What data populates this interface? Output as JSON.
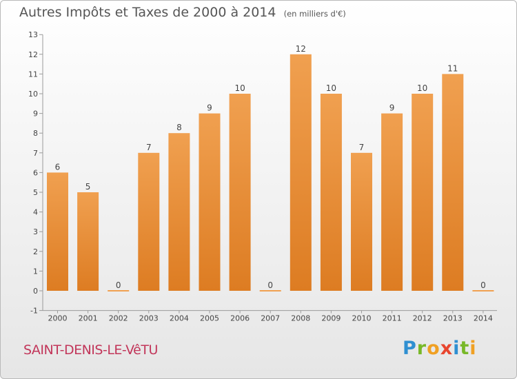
{
  "header": {
    "title": "Autres Impôts et Taxes de 2000 à 2014",
    "unit": "(en milliers d'€)"
  },
  "footer": {
    "commune": "SAINT-DENIS-LE-VêTU",
    "brand_letters": [
      "P",
      "r",
      "o",
      "x",
      "i",
      "t",
      "i"
    ],
    "brand_colors": [
      "#2f8fd1",
      "#78b828",
      "#f0a023",
      "#e8452e",
      "#2f8fd1",
      "#78b828",
      "#f0a023"
    ]
  },
  "chart_data": {
    "type": "bar",
    "categories": [
      "2000",
      "2001",
      "2002",
      "2003",
      "2004",
      "2005",
      "2006",
      "2007",
      "2008",
      "2009",
      "2010",
      "2011",
      "2012",
      "2013",
      "2014"
    ],
    "values": [
      6,
      5,
      0,
      7,
      8,
      9,
      10,
      0,
      12,
      10,
      7,
      9,
      10,
      11,
      0
    ],
    "data_labels": [
      "6",
      "5",
      "0",
      "7",
      "8",
      "9",
      "10",
      "0",
      "12",
      "10",
      "7",
      "9",
      "10",
      "11",
      "0"
    ],
    "yticks": [
      -1,
      0,
      1,
      2,
      3,
      4,
      5,
      6,
      7,
      8,
      9,
      10,
      11,
      12,
      13
    ],
    "ylim": [
      -1,
      13
    ],
    "bar_color": "#f0a050",
    "bar_color_dark": "#dd7c22",
    "grid": false
  }
}
